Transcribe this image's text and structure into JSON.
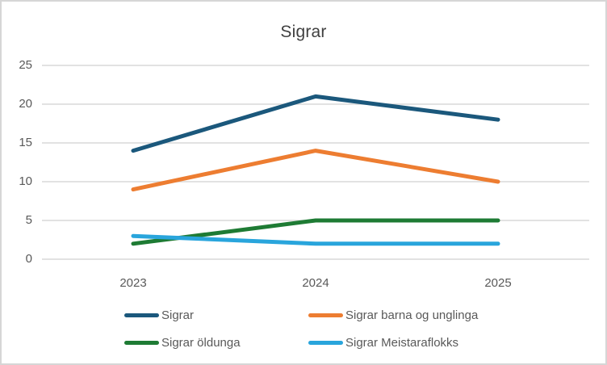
{
  "frame": {
    "background": "#ffffff",
    "border_color": "#d6d6d6"
  },
  "chart_data": {
    "type": "line",
    "title": "Sigrar",
    "categories": [
      "2023",
      "2024",
      "2025"
    ],
    "series": [
      {
        "name": "Sigrar",
        "color": "#1b587c",
        "values": [
          14,
          21,
          18
        ]
      },
      {
        "name": "Sigrar barna og unglinga",
        "color": "#ed7d31",
        "values": [
          9,
          14,
          10
        ]
      },
      {
        "name": "Sigrar öldunga",
        "color": "#1e7b34",
        "values": [
          2,
          5,
          5
        ]
      },
      {
        "name": "Sigrar Meistaraflokks",
        "color": "#29a5dc",
        "values": [
          3,
          2,
          2
        ]
      }
    ],
    "yticks": [
      0,
      5,
      10,
      15,
      20,
      25
    ],
    "ylim": [
      0,
      25
    ],
    "grid": "horizontal",
    "gridline_color": "#d9d9d9",
    "axis_text_color": "#595959",
    "title_color": "#404040",
    "legend_position": "bottom",
    "line_width": 5
  }
}
